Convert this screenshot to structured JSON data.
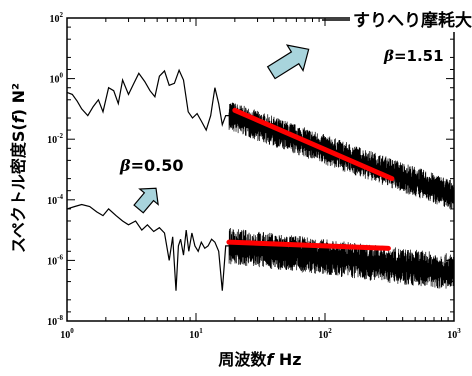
{
  "chart_data": {
    "type": "line",
    "xlabel_parts": {
      "prefix": "周波数",
      "var": "f",
      "suffix": " Hz"
    },
    "ylabel_parts": {
      "prefix": "スペクトル密度S(",
      "var": "f",
      "suffix": ") N²"
    },
    "x_scale": "log",
    "y_scale": "log",
    "xlim": [
      1,
      1000
    ],
    "ylim": [
      1e-08,
      100
    ],
    "x_ticks": [
      {
        "value": 1,
        "base": "10",
        "exp": "0"
      },
      {
        "value": 10,
        "base": "10",
        "exp": "1"
      },
      {
        "value": 100,
        "base": "10",
        "exp": "2"
      },
      {
        "value": 1000,
        "base": "10",
        "exp": "3"
      }
    ],
    "y_ticks": [
      {
        "value": 1e-08,
        "base": "10",
        "exp": "-8"
      },
      {
        "value": 1e-06,
        "base": "10",
        "exp": "-6"
      },
      {
        "value": 0.0001,
        "base": "10",
        "exp": "-4"
      },
      {
        "value": 0.01,
        "base": "10",
        "exp": "-2"
      },
      {
        "value": 1,
        "base": "10",
        "exp": "0"
      },
      {
        "value": 100,
        "base": "10",
        "exp": "2"
      }
    ],
    "grid": false,
    "series": [
      {
        "name": "すりへり摩耗大",
        "color": "#000000",
        "x": [
          1.0,
          1.1,
          1.2,
          1.3,
          1.45,
          1.6,
          1.75,
          1.9,
          2.1,
          2.3,
          2.5,
          2.7,
          3.0,
          3.3,
          3.6,
          4.0,
          4.4,
          4.8,
          5.2,
          5.7,
          6.2,
          6.8,
          7.4,
          8.0,
          8.7,
          9.4,
          10.2,
          11.0,
          12.0,
          13.0,
          14.0,
          15.0,
          16.0,
          17.0,
          18.5
        ],
        "y": [
          0.35,
          0.3,
          0.18,
          0.1,
          0.06,
          0.12,
          0.2,
          0.08,
          0.5,
          0.4,
          0.15,
          0.9,
          0.3,
          0.7,
          1.5,
          0.8,
          0.4,
          0.25,
          1.2,
          1.8,
          0.6,
          0.7,
          1.9,
          0.9,
          0.08,
          0.05,
          0.07,
          0.04,
          0.02,
          0.06,
          0.5,
          0.15,
          0.03,
          0.06,
          0.06
        ]
      },
      {
        "name": "",
        "color": "#000000",
        "x": [
          1.0,
          1.15,
          1.3,
          1.5,
          1.7,
          1.9,
          2.1,
          2.4,
          2.7,
          3.0,
          3.4,
          3.8,
          4.2,
          4.7,
          5.2,
          5.7,
          6.2,
          6.6,
          7.0,
          7.3,
          7.6,
          8.0,
          8.4,
          8.8,
          9.3,
          9.8,
          10.4,
          11.0,
          11.7,
          12.4,
          13.2,
          14.0,
          15.0,
          16.0,
          17.0,
          18.5
        ],
        "y": [
          5e-05,
          6e-05,
          7e-05,
          6e-05,
          4e-05,
          3e-05,
          5e-05,
          3e-05,
          2e-05,
          1.5e-05,
          2e-05,
          1e-05,
          1.5e-05,
          9e-06,
          1.2e-05,
          8e-06,
          1e-06,
          6e-06,
          1e-07,
          3e-06,
          5e-06,
          1.5e-06,
          1e-05,
          2e-06,
          8e-06,
          3e-06,
          2e-06,
          4e-06,
          2.5e-06,
          3e-06,
          5e-06,
          4e-06,
          2e-06,
          1e-07,
          3e-06,
          3e-06
        ]
      }
    ],
    "noise_band_series": [
      {
        "x_range": [
          18,
          1000
        ],
        "y_start": 0.06,
        "slope": -1.51,
        "spread_decades": 1.0
      },
      {
        "x_range": [
          18,
          1000
        ],
        "y_start": 3e-06,
        "slope": -0.5,
        "spread_decades": 1.2
      }
    ],
    "fit_lines": [
      {
        "color": "#ff0000",
        "x": [
          20,
          330
        ],
        "y": [
          0.09,
          0.0005
        ]
      },
      {
        "color": "#ff0000",
        "x": [
          18,
          310
        ],
        "y": [
          4e-06,
          2.5e-06
        ]
      }
    ],
    "annotations": {
      "top_label": "すりへり摩耗大",
      "beta_top": {
        "symbol": "β",
        "text": "=1.51"
      },
      "beta_bottom": {
        "symbol": "β",
        "text": "=0.50"
      }
    },
    "arrow_color": "#a8d4dc"
  }
}
